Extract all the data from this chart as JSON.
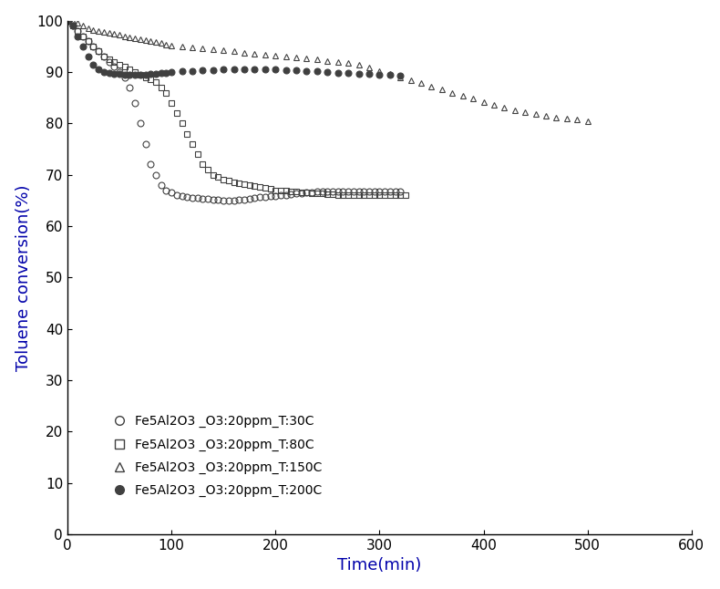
{
  "series": [
    {
      "label": "Fe5Al2O3 _O3:20ppm_T:30C",
      "marker": "o",
      "markerfacecolor": "none",
      "markeredgecolor": "#404040",
      "color": "#404040",
      "markersize": 5,
      "linewidth": 0,
      "x": [
        0,
        5,
        10,
        15,
        20,
        25,
        30,
        35,
        40,
        45,
        50,
        55,
        60,
        65,
        70,
        75,
        80,
        85,
        90,
        95,
        100,
        105,
        110,
        115,
        120,
        125,
        130,
        135,
        140,
        145,
        150,
        155,
        160,
        165,
        170,
        175,
        180,
        185,
        190,
        195,
        200,
        205,
        210,
        215,
        220,
        225,
        230,
        235,
        240,
        245,
        250,
        255,
        260,
        265,
        270,
        275,
        280,
        285,
        290,
        295,
        300,
        305,
        310,
        315,
        320
      ],
      "y": [
        100,
        99,
        98,
        97,
        96,
        95,
        94,
        93,
        92,
        91,
        90,
        89,
        87,
        84,
        80,
        76,
        72,
        70,
        68,
        67,
        66.5,
        66,
        65.8,
        65.7,
        65.5,
        65.5,
        65.4,
        65.3,
        65.2,
        65.1,
        65.0,
        65.0,
        65.0,
        65.1,
        65.2,
        65.3,
        65.5,
        65.6,
        65.7,
        65.8,
        65.9,
        66.0,
        66.1,
        66.2,
        66.3,
        66.4,
        66.5,
        66.6,
        66.7,
        66.8,
        66.8,
        66.8,
        66.8,
        66.8,
        66.8,
        66.8,
        66.8,
        66.8,
        66.8,
        66.8,
        66.8,
        66.8,
        66.8,
        66.8,
        66.8
      ]
    },
    {
      "label": "Fe5Al2O3 _O3:20ppm_T:80C",
      "marker": "s",
      "markerfacecolor": "none",
      "markeredgecolor": "#404040",
      "color": "#404040",
      "markersize": 5,
      "linewidth": 0,
      "x": [
        0,
        5,
        10,
        15,
        20,
        25,
        30,
        35,
        40,
        45,
        50,
        55,
        60,
        65,
        70,
        75,
        80,
        85,
        90,
        95,
        100,
        105,
        110,
        115,
        120,
        125,
        130,
        135,
        140,
        145,
        150,
        155,
        160,
        165,
        170,
        175,
        180,
        185,
        190,
        195,
        200,
        205,
        210,
        215,
        220,
        225,
        230,
        235,
        240,
        245,
        250,
        255,
        260,
        265,
        270,
        275,
        280,
        285,
        290,
        295,
        300,
        305,
        310,
        315,
        320,
        325
      ],
      "y": [
        100,
        99,
        98,
        97,
        96,
        95,
        94,
        93,
        92.5,
        92,
        91.5,
        91,
        90.5,
        90,
        89.5,
        89,
        88.5,
        88,
        87,
        86,
        84,
        82,
        80,
        78,
        76,
        74,
        72,
        71,
        70,
        69.5,
        69,
        68.8,
        68.6,
        68.4,
        68.2,
        68.0,
        67.8,
        67.6,
        67.4,
        67.2,
        67.0,
        67.0,
        66.9,
        66.8,
        66.7,
        66.6,
        66.5,
        66.4,
        66.3,
        66.3,
        66.2,
        66.2,
        66.1,
        66.1,
        66.0,
        66.0,
        66.0,
        66.0,
        66.0,
        66.0,
        66.0,
        66.0,
        66.0,
        66.0,
        66.0,
        66.0
      ]
    },
    {
      "label": "Fe5Al2O3 _O3:20ppm_T:150C",
      "marker": "^",
      "markerfacecolor": "none",
      "markeredgecolor": "#404040",
      "color": "#404040",
      "markersize": 5,
      "linewidth": 0,
      "x": [
        0,
        5,
        10,
        15,
        20,
        25,
        30,
        35,
        40,
        45,
        50,
        55,
        60,
        65,
        70,
        75,
        80,
        85,
        90,
        95,
        100,
        110,
        120,
        130,
        140,
        150,
        160,
        170,
        180,
        190,
        200,
        210,
        220,
        230,
        240,
        250,
        260,
        270,
        280,
        290,
        300,
        310,
        320,
        330,
        340,
        350,
        360,
        370,
        380,
        390,
        400,
        410,
        420,
        430,
        440,
        450,
        460,
        470,
        480,
        490,
        500
      ],
      "y": [
        100,
        100,
        99.5,
        99,
        98.5,
        98.2,
        98.0,
        97.8,
        97.6,
        97.4,
        97.2,
        97.0,
        96.8,
        96.6,
        96.4,
        96.2,
        96.0,
        95.8,
        95.6,
        95.4,
        95.2,
        95.0,
        94.8,
        94.6,
        94.4,
        94.2,
        94.0,
        93.8,
        93.6,
        93.4,
        93.2,
        93.0,
        92.8,
        92.6,
        92.4,
        92.2,
        92.0,
        91.8,
        91.4,
        90.8,
        90.2,
        89.6,
        89.0,
        88.4,
        87.8,
        87.2,
        86.6,
        86.0,
        85.4,
        84.8,
        84.2,
        83.6,
        83.0,
        82.6,
        82.2,
        81.8,
        81.5,
        81.2,
        81.0,
        80.8,
        80.5
      ]
    },
    {
      "label": "Fe5Al2O3 _O3:20ppm_T:200C",
      "marker": "o",
      "markerfacecolor": "#404040",
      "markeredgecolor": "#404040",
      "color": "#404040",
      "markersize": 5,
      "linewidth": 0,
      "x": [
        0,
        5,
        10,
        15,
        20,
        25,
        30,
        35,
        40,
        45,
        50,
        55,
        60,
        65,
        70,
        75,
        80,
        85,
        90,
        95,
        100,
        110,
        120,
        130,
        140,
        150,
        160,
        170,
        180,
        190,
        200,
        210,
        220,
        230,
        240,
        250,
        260,
        270,
        280,
        290,
        300,
        310,
        320
      ],
      "y": [
        100,
        99,
        97,
        95,
        93,
        91.5,
        90.5,
        90,
        89.8,
        89.7,
        89.6,
        89.5,
        89.5,
        89.5,
        89.5,
        89.5,
        89.6,
        89.7,
        89.8,
        89.9,
        90.0,
        90.1,
        90.2,
        90.3,
        90.4,
        90.5,
        90.5,
        90.5,
        90.5,
        90.5,
        90.5,
        90.4,
        90.3,
        90.2,
        90.1,
        90.0,
        89.9,
        89.8,
        89.7,
        89.6,
        89.5,
        89.4,
        89.3
      ]
    }
  ],
  "xlabel": "Time(min)",
  "ylabel": "Toluene conversion(%)",
  "xlim": [
    0,
    600
  ],
  "ylim": [
    0,
    100
  ],
  "xticks": [
    0,
    100,
    200,
    300,
    400,
    500,
    600
  ],
  "yticks": [
    0,
    10,
    20,
    30,
    40,
    50,
    60,
    70,
    80,
    90,
    100
  ],
  "figsize": [
    7.9,
    6.46
  ],
  "dpi": 100,
  "background_color": "#ffffff",
  "axis_color": "#000000",
  "tick_color": "#000000",
  "label_color": "#0000aa",
  "grid": false
}
